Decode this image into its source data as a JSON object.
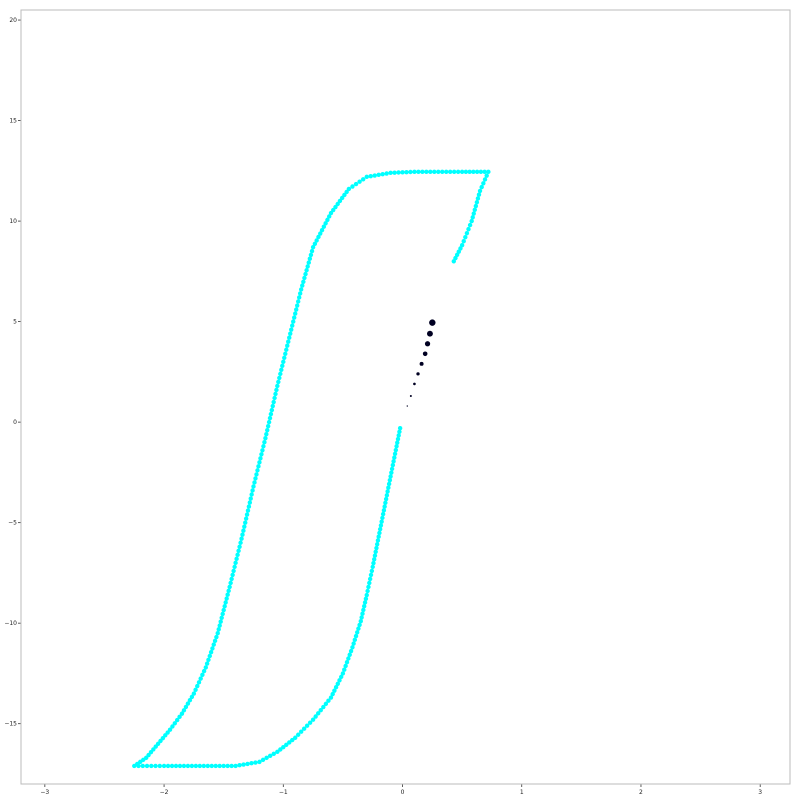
{
  "chart_data": {
    "type": "scatter",
    "title": "",
    "xlabel": "",
    "ylabel": "",
    "xlim": [
      -3.2,
      3.25
    ],
    "ylim": [
      -18,
      20.5
    ],
    "grid": false,
    "x_ticks": [
      -3,
      -2,
      -1,
      0,
      1,
      2,
      3
    ],
    "y_ticks": [
      -15,
      -10,
      -5,
      0,
      5,
      10,
      15,
      20
    ],
    "x_tick_labels": [
      "−3",
      "−2",
      "−1",
      "0",
      "1",
      "2",
      "3"
    ],
    "y_tick_labels": [
      "−15",
      "−10",
      "−5",
      "0",
      "5",
      "10",
      "15",
      "20"
    ],
    "colors": {
      "main": "#00ffff",
      "trail": "#000022"
    },
    "series": [
      {
        "color": "#00ffff",
        "points": [
          [
            -0.02,
            -0.3
          ],
          [
            -0.05,
            -1.2
          ],
          [
            -0.1,
            -2.7
          ],
          [
            -0.15,
            -4.2
          ],
          [
            -0.2,
            -5.7
          ],
          [
            -0.25,
            -7.2
          ],
          [
            -0.3,
            -8.6
          ],
          [
            -0.35,
            -9.9
          ],
          [
            -0.42,
            -11.2
          ],
          [
            -0.5,
            -12.5
          ],
          [
            -0.6,
            -13.7
          ],
          [
            -0.75,
            -14.8
          ],
          [
            -0.9,
            -15.7
          ],
          [
            -1.05,
            -16.4
          ],
          [
            -1.2,
            -16.9
          ],
          [
            -1.4,
            -17.1
          ],
          [
            -1.6,
            -17.1
          ],
          [
            -1.8,
            -17.1
          ],
          [
            -2.0,
            -17.1
          ],
          [
            -2.25,
            -17.1
          ],
          [
            -2.15,
            -16.7
          ],
          [
            -2.05,
            -16.0
          ],
          [
            -1.95,
            -15.3
          ],
          [
            -1.85,
            -14.5
          ],
          [
            -1.75,
            -13.5
          ],
          [
            -1.65,
            -12.2
          ],
          [
            -1.55,
            -10.5
          ],
          [
            -1.45,
            -8.2
          ],
          [
            -1.35,
            -5.8
          ],
          [
            -1.25,
            -3.2
          ],
          [
            -1.15,
            -0.8
          ],
          [
            -1.05,
            1.8
          ],
          [
            -0.95,
            4.2
          ],
          [
            -0.85,
            6.6
          ],
          [
            -0.75,
            8.7
          ],
          [
            -0.6,
            10.4
          ],
          [
            -0.45,
            11.6
          ],
          [
            -0.3,
            12.2
          ],
          [
            -0.1,
            12.4
          ],
          [
            0.1,
            12.45
          ],
          [
            0.3,
            12.45
          ],
          [
            0.5,
            12.45
          ],
          [
            0.72,
            12.45
          ],
          [
            0.65,
            11.5
          ],
          [
            0.58,
            10.0
          ],
          [
            0.5,
            8.8
          ],
          [
            0.43,
            8.0
          ]
        ]
      },
      {
        "color": "#000022",
        "points": [
          [
            0.04,
            0.8
          ],
          [
            0.07,
            1.3
          ],
          [
            0.1,
            1.9
          ],
          [
            0.13,
            2.4
          ],
          [
            0.16,
            2.9
          ],
          [
            0.19,
            3.4
          ],
          [
            0.21,
            3.9
          ],
          [
            0.23,
            4.4
          ],
          [
            0.25,
            4.95
          ]
        ]
      }
    ]
  }
}
